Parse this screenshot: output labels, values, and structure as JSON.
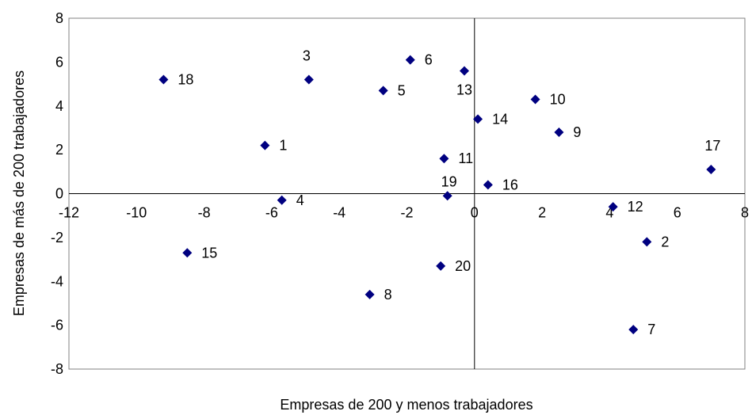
{
  "chart_data": {
    "type": "scatter",
    "title": "",
    "xlabel": "Empresas de 200 y menos trabajadores",
    "ylabel": "Empresas de más de 200 trabajadores",
    "xlim": [
      -12,
      8
    ],
    "ylim": [
      -8,
      8
    ],
    "xticks": [
      "-12",
      "-10",
      "-8",
      "-6",
      "-4",
      "-2",
      "0",
      "2",
      "4",
      "6",
      "8"
    ],
    "yticks": [
      "8",
      "6",
      "4",
      "2",
      "0",
      "-2",
      "-4",
      "-6",
      "-8"
    ],
    "marker_color": "#000080",
    "grid": false,
    "legend": "none",
    "points": [
      {
        "label": "1",
        "x": -6.2,
        "y": 2.2
      },
      {
        "label": "2",
        "x": 5.1,
        "y": -2.2
      },
      {
        "label": "3",
        "x": -4.9,
        "y": 5.2
      },
      {
        "label": "4",
        "x": -5.7,
        "y": -0.3
      },
      {
        "label": "5",
        "x": -2.7,
        "y": 4.7
      },
      {
        "label": "6",
        "x": -1.9,
        "y": 6.1
      },
      {
        "label": "7",
        "x": 4.7,
        "y": -6.2
      },
      {
        "label": "8",
        "x": -3.1,
        "y": -4.6
      },
      {
        "label": "9",
        "x": 2.5,
        "y": 2.8
      },
      {
        "label": "10",
        "x": 1.8,
        "y": 4.3
      },
      {
        "label": "11",
        "x": -0.9,
        "y": 1.6
      },
      {
        "label": "12",
        "x": 4.1,
        "y": -0.6
      },
      {
        "label": "13",
        "x": -0.3,
        "y": 5.6
      },
      {
        "label": "14",
        "x": 0.1,
        "y": 3.4
      },
      {
        "label": "15",
        "x": -8.5,
        "y": -2.7
      },
      {
        "label": "16",
        "x": 0.4,
        "y": 0.4
      },
      {
        "label": "17",
        "x": 7.0,
        "y": 1.1
      },
      {
        "label": "18",
        "x": -9.2,
        "y": 5.2
      },
      {
        "label": "19",
        "x": -0.8,
        "y": -0.1
      },
      {
        "label": "20",
        "x": -1.0,
        "y": -3.3
      }
    ]
  }
}
